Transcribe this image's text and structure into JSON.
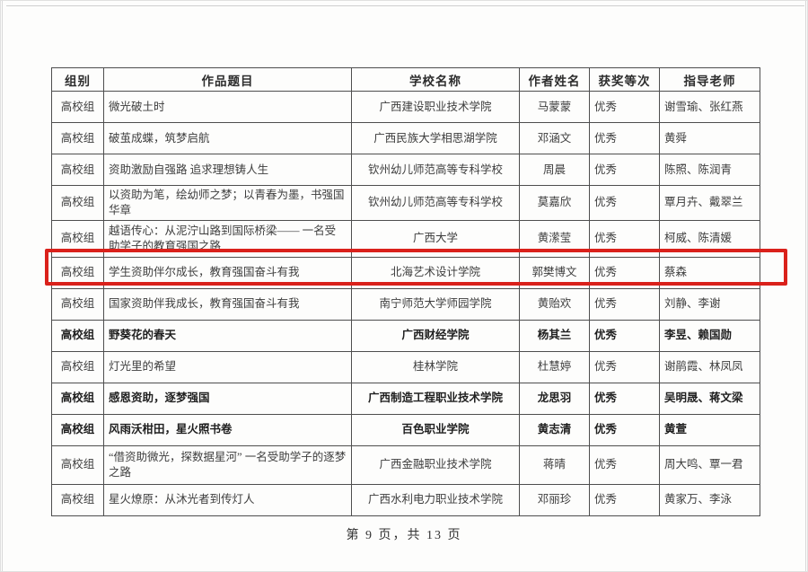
{
  "page": {
    "footer": "第 9 页，共 13 页"
  },
  "highlight": {
    "row_index": 5,
    "color": "#da211b"
  },
  "table": {
    "columns": [
      "组别",
      "作品题目",
      "学校名称",
      "作者姓名",
      "获奖等次",
      "指导老师"
    ],
    "rows": [
      {
        "group": "高校组",
        "title": "微光破土时",
        "school": "广西建设职业技术学院",
        "author": "马蒙蒙",
        "award": "优秀",
        "teachers": "谢雪瑜、张红燕",
        "bold": false
      },
      {
        "group": "高校组",
        "title": "破茧成蝶，筑梦启航",
        "school": "广西民族大学相思湖学院",
        "author": "邓涵文",
        "award": "优秀",
        "teachers": "黄舜",
        "bold": false
      },
      {
        "group": "高校组",
        "title": "资助激励自强路 追求理想铸人生",
        "school": "钦州幼儿师范高等专科学校",
        "author": "周晨",
        "award": "优秀",
        "teachers": "陈照、陈润青",
        "bold": false
      },
      {
        "group": "高校组",
        "title": "以资助为笔，绘幼师之梦；以青春为墨，书强国华章",
        "school": "钦州幼儿师范高等专科学校",
        "author": "莫嘉欣",
        "award": "优秀",
        "teachers": "覃月卉、戴翠兰",
        "bold": false
      },
      {
        "group": "高校组",
        "title": "越语传心：从泥泞山路到国际桥梁—— 一名受助学子的教育强国之路",
        "school": "广西大学",
        "author": "黄潆莹",
        "award": "优秀",
        "teachers": "柯威、陈清媛",
        "bold": false
      },
      {
        "group": "高校组",
        "title": "学生资助伴尔成长，教育强国奋斗有我",
        "school": "北海艺术设计学院",
        "author": "郭樊博文",
        "award": "优秀",
        "teachers": "蔡森",
        "bold": false
      },
      {
        "group": "高校组",
        "title": "国家资助伴我成长，教育强国奋斗有我",
        "school": "南宁师范大学师园学院",
        "author": "黄贻欢",
        "award": "优秀",
        "teachers": "刘静、李谢",
        "bold": false
      },
      {
        "group": "高校组",
        "title": "野葵花的春天",
        "school": "广西财经学院",
        "author": "杨其兰",
        "award": "优秀",
        "teachers": "李昱、赖国勋",
        "bold": true
      },
      {
        "group": "高校组",
        "title": "灯光里的希望",
        "school": "桂林学院",
        "author": "杜慧婷",
        "award": "优秀",
        "teachers": "谢鹃霞、林凤凤",
        "bold": false
      },
      {
        "group": "高校组",
        "title": "感恩资助，逐梦强国",
        "school": "广西制造工程职业技术学院",
        "author": "龙思羽",
        "award": "优秀",
        "teachers": "吴明晟、蒋文梁",
        "bold": true
      },
      {
        "group": "高校组",
        "title": "风雨沃柑田，星火照书卷",
        "school": "百色职业学院",
        "author": "黄志清",
        "award": "优秀",
        "teachers": "黄萱",
        "bold": true
      },
      {
        "group": "高校组",
        "title": "“借资助微光，探数据星河”  一名受助学子的逐梦之路",
        "school": "广西金融职业技术学院",
        "author": "蒋晴",
        "award": "优秀",
        "teachers": "周大鸣、覃一君",
        "bold": false
      },
      {
        "group": "高校组",
        "title": "星火燎原：从沐光者到传灯人",
        "school": "广西水利电力职业技术学院",
        "author": "邓丽珍",
        "award": "优秀",
        "teachers": "黄家万、李泳",
        "bold": false
      }
    ]
  }
}
